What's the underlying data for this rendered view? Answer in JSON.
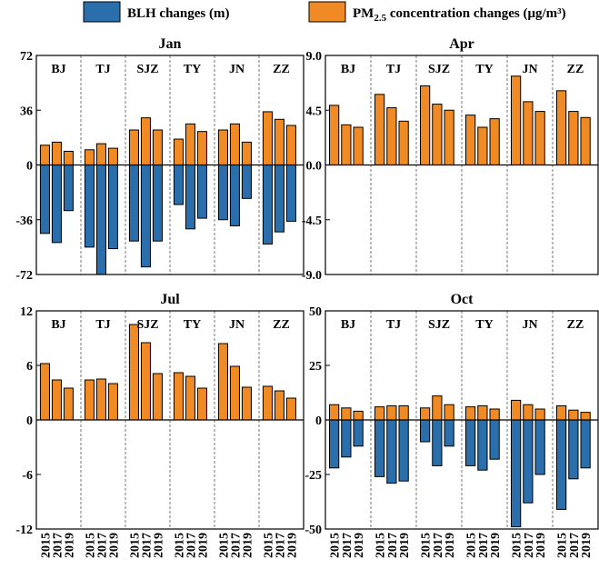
{
  "legend": {
    "blh_label": "BLH changes (m)",
    "pm_label_prefix": "PM",
    "pm_label_sub": "2.5",
    "pm_label_suffix": " concentration changes (μg/m³)"
  },
  "colors": {
    "blh": "#2a6fab",
    "pm": "#f08a24",
    "edge": "#000000",
    "divider": "#555555"
  },
  "years": [
    "2015",
    "2017",
    "2019"
  ],
  "chart_data": [
    {
      "type": "bar",
      "title": "Jan",
      "ylim": [
        -72,
        72
      ],
      "yticks": [
        "72",
        "36",
        "0",
        "-36",
        "-72"
      ],
      "groups": [
        "BJ",
        "TJ",
        "SJZ",
        "TY",
        "JN",
        "ZZ"
      ],
      "series": [
        {
          "values": [
            -45,
            -51,
            -30,
            -54,
            -72,
            -55,
            -50,
            -67,
            -50,
            -26,
            -42,
            -35,
            -36,
            -40,
            -22,
            -52,
            -44,
            -37
          ]
        },
        {
          "values": [
            13,
            15,
            9,
            10,
            14,
            11,
            23,
            31,
            23,
            17,
            27,
            22,
            23,
            27,
            15,
            35,
            30,
            26
          ]
        }
      ]
    },
    {
      "type": "bar",
      "title": "Apr",
      "ylim": [
        -9.0,
        9.0
      ],
      "yticks": [
        "9.0",
        "4.5",
        "0.0",
        "-4.5",
        "-9.0"
      ],
      "groups": [
        "BJ",
        "TJ",
        "SJZ",
        "TY",
        "JN",
        "ZZ"
      ],
      "series": [
        {
          "values": [
            0,
            0,
            0,
            0,
            0,
            0,
            0,
            0,
            0,
            0,
            0,
            0,
            0,
            0,
            0,
            0,
            0,
            0
          ]
        },
        {
          "values": [
            4.9,
            3.3,
            3.1,
            5.8,
            4.7,
            3.6,
            6.5,
            5.0,
            4.5,
            4.1,
            3.1,
            3.8,
            7.3,
            5.2,
            4.4,
            6.1,
            4.4,
            3.9
          ]
        }
      ]
    },
    {
      "type": "bar",
      "title": "Jul",
      "ylim": [
        -12,
        12
      ],
      "yticks": [
        "12",
        "6",
        "0",
        "-6",
        "-12"
      ],
      "groups": [
        "BJ",
        "TJ",
        "SJZ",
        "TY",
        "JN",
        "ZZ"
      ],
      "series": [
        {
          "values": [
            0,
            0,
            0,
            0,
            0,
            0,
            0,
            0,
            0,
            0,
            0,
            0,
            0,
            0,
            0,
            0,
            0,
            0
          ]
        },
        {
          "values": [
            6.2,
            4.4,
            3.5,
            4.4,
            4.5,
            4.0,
            10.5,
            8.5,
            5.1,
            5.2,
            4.8,
            3.5,
            8.4,
            5.9,
            3.6,
            3.7,
            3.2,
            2.4
          ]
        }
      ]
    },
    {
      "type": "bar",
      "title": "Oct",
      "ylim": [
        -50,
        50
      ],
      "yticks": [
        "50",
        "25",
        "0",
        "-25",
        "-50"
      ],
      "groups": [
        "BJ",
        "TJ",
        "SJZ",
        "TY",
        "JN",
        "ZZ"
      ],
      "series": [
        {
          "values": [
            -22,
            -17,
            -12,
            -26,
            -29,
            -28,
            -10,
            -21,
            -12,
            -21,
            -23,
            -18,
            -49,
            -38,
            -25,
            -41,
            -27,
            -22
          ]
        },
        {
          "values": [
            7,
            5.5,
            4,
            6,
            6.5,
            6.5,
            5.5,
            11,
            7,
            6,
            6.5,
            5,
            9,
            7,
            5,
            6.5,
            4.5,
            3.5
          ]
        }
      ]
    }
  ]
}
